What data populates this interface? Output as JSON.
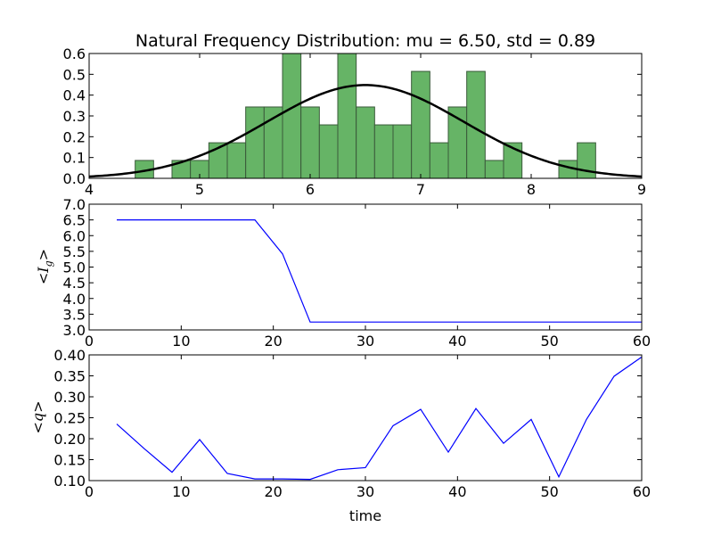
{
  "figure": {
    "xlabel_bottom": "time"
  },
  "chart_data": [
    {
      "type": "bar",
      "subtype": "histogram_with_curve",
      "title": "Natural Frequency Distribution: mu = 6.50,  std = 0.89",
      "xlabel": "",
      "ylabel": "",
      "xlim": [
        4,
        9
      ],
      "ylim": [
        0,
        0.6
      ],
      "xticks": [
        4,
        5,
        6,
        7,
        8,
        9
      ],
      "yticks": [
        0.0,
        0.1,
        0.2,
        0.3,
        0.4,
        0.5,
        0.6
      ],
      "ytick_decimals": 1,
      "bar_color": "#66b466",
      "bar_edge": "#3a5a3a",
      "curve_color": "#000000",
      "bin_width": 0.1667,
      "bins": [
        {
          "x0": 4.4167,
          "h": 0.086
        },
        {
          "x0": 4.75,
          "h": 0.086
        },
        {
          "x0": 4.9167,
          "h": 0.086
        },
        {
          "x0": 5.0833,
          "h": 0.171
        },
        {
          "x0": 5.25,
          "h": 0.171
        },
        {
          "x0": 5.4167,
          "h": 0.343
        },
        {
          "x0": 5.5833,
          "h": 0.343
        },
        {
          "x0": 5.75,
          "h": 0.6
        },
        {
          "x0": 5.9167,
          "h": 0.343
        },
        {
          "x0": 6.0833,
          "h": 0.257
        },
        {
          "x0": 6.25,
          "h": 0.6
        },
        {
          "x0": 6.4167,
          "h": 0.343
        },
        {
          "x0": 6.5833,
          "h": 0.257
        },
        {
          "x0": 6.75,
          "h": 0.257
        },
        {
          "x0": 6.9167,
          "h": 0.514
        },
        {
          "x0": 7.0833,
          "h": 0.171
        },
        {
          "x0": 7.25,
          "h": 0.343
        },
        {
          "x0": 7.4167,
          "h": 0.514
        },
        {
          "x0": 7.5833,
          "h": 0.086
        },
        {
          "x0": 7.75,
          "h": 0.171
        },
        {
          "x0": 8.25,
          "h": 0.086
        },
        {
          "x0": 8.4167,
          "h": 0.171
        }
      ],
      "curve": {
        "mu": 6.5,
        "std": 0.89
      }
    },
    {
      "type": "line",
      "xlabel": "",
      "ylabel": "<I_g>",
      "ylabel_main": "<I",
      "ylabel_sub": "g",
      "ylabel_end": ">",
      "xlim": [
        0,
        60
      ],
      "ylim": [
        3.0,
        7.0
      ],
      "xticks": [
        0,
        10,
        20,
        30,
        40,
        50,
        60
      ],
      "yticks": [
        3.0,
        3.5,
        4.0,
        4.5,
        5.0,
        5.5,
        6.0,
        6.5,
        7.0
      ],
      "ytick_decimals": 1,
      "line_color": "#0000ff",
      "series": [
        {
          "x": [
            3,
            6,
            9,
            12,
            15,
            18,
            21,
            24,
            27,
            30,
            33,
            36,
            39,
            42,
            45,
            48,
            51,
            54,
            57,
            60
          ],
          "values": [
            6.5,
            6.5,
            6.5,
            6.5,
            6.5,
            6.5,
            5.42,
            3.25,
            3.25,
            3.25,
            3.25,
            3.25,
            3.25,
            3.25,
            3.25,
            3.25,
            3.25,
            3.25,
            3.25,
            3.25
          ]
        }
      ]
    },
    {
      "type": "line",
      "xlabel": "time",
      "ylabel": "<q>",
      "xlim": [
        0,
        60
      ],
      "ylim": [
        0.1,
        0.4
      ],
      "xticks": [
        0,
        10,
        20,
        30,
        40,
        50,
        60
      ],
      "yticks": [
        0.1,
        0.15,
        0.2,
        0.25,
        0.3,
        0.35,
        0.4
      ],
      "ytick_decimals": 2,
      "line_color": "#0000ff",
      "series": [
        {
          "x": [
            3,
            6,
            9,
            12,
            15,
            18,
            21,
            24,
            27,
            30,
            33,
            36,
            39,
            42,
            45,
            48,
            51,
            54,
            57,
            60
          ],
          "values": [
            0.235,
            0.176,
            0.12,
            0.198,
            0.117,
            0.104,
            0.104,
            0.103,
            0.126,
            0.131,
            0.231,
            0.27,
            0.168,
            0.272,
            0.189,
            0.246,
            0.109,
            0.246,
            0.349,
            0.395
          ]
        }
      ]
    }
  ]
}
